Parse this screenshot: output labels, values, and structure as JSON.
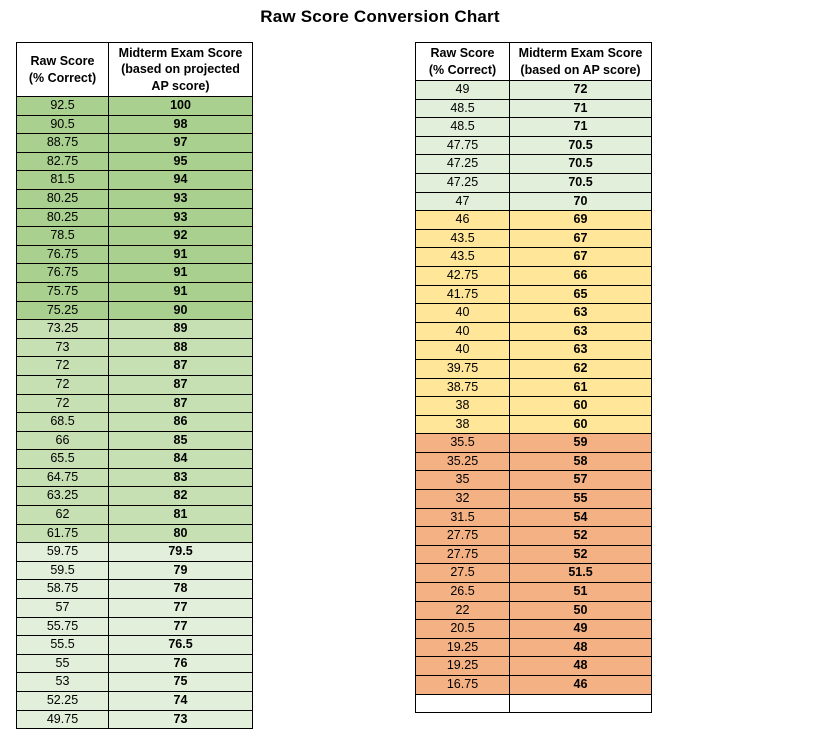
{
  "title": "Raw Score Conversion Chart",
  "colors": {
    "dark_green": "#A9D08E",
    "medium_green": "#C6E0B4",
    "light_green": "#E2EFDA",
    "yellow": "#FFE699",
    "orange": "#F4B183",
    "white": "#FFFFFF",
    "border": "#000000"
  },
  "tables": {
    "left": {
      "header": {
        "raw": "Raw Score\n(% Correct)",
        "score": "Midterm Exam Score\n(based on projected\nAP score)"
      },
      "rows": [
        {
          "raw": "92.5",
          "score": "100",
          "band": "dark_green"
        },
        {
          "raw": "90.5",
          "score": "98",
          "band": "dark_green"
        },
        {
          "raw": "88.75",
          "score": "97",
          "band": "dark_green"
        },
        {
          "raw": "82.75",
          "score": "95",
          "band": "dark_green"
        },
        {
          "raw": "81.5",
          "score": "94",
          "band": "dark_green"
        },
        {
          "raw": "80.25",
          "score": "93",
          "band": "dark_green"
        },
        {
          "raw": "80.25",
          "score": "93",
          "band": "dark_green"
        },
        {
          "raw": "78.5",
          "score": "92",
          "band": "dark_green"
        },
        {
          "raw": "76.75",
          "score": "91",
          "band": "dark_green"
        },
        {
          "raw": "76.75",
          "score": "91",
          "band": "dark_green"
        },
        {
          "raw": "75.75",
          "score": "91",
          "band": "dark_green"
        },
        {
          "raw": "75.25",
          "score": "90",
          "band": "dark_green"
        },
        {
          "raw": "73.25",
          "score": "89",
          "band": "medium_green"
        },
        {
          "raw": "73",
          "score": "88",
          "band": "medium_green"
        },
        {
          "raw": "72",
          "score": "87",
          "band": "medium_green"
        },
        {
          "raw": "72",
          "score": "87",
          "band": "medium_green"
        },
        {
          "raw": "72",
          "score": "87",
          "band": "medium_green"
        },
        {
          "raw": "68.5",
          "score": "86",
          "band": "medium_green"
        },
        {
          "raw": "66",
          "score": "85",
          "band": "medium_green"
        },
        {
          "raw": "65.5",
          "score": "84",
          "band": "medium_green"
        },
        {
          "raw": "64.75",
          "score": "83",
          "band": "medium_green"
        },
        {
          "raw": "63.25",
          "score": "82",
          "band": "medium_green"
        },
        {
          "raw": "62",
          "score": "81",
          "band": "medium_green"
        },
        {
          "raw": "61.75",
          "score": "80",
          "band": "medium_green"
        },
        {
          "raw": "59.75",
          "score": "79.5",
          "band": "light_green"
        },
        {
          "raw": "59.5",
          "score": "79",
          "band": "light_green"
        },
        {
          "raw": "58.75",
          "score": "78",
          "band": "light_green"
        },
        {
          "raw": "57",
          "score": "77",
          "band": "light_green"
        },
        {
          "raw": "55.75",
          "score": "77",
          "band": "light_green"
        },
        {
          "raw": "55.5",
          "score": "76.5",
          "band": "light_green"
        },
        {
          "raw": "55",
          "score": "76",
          "band": "light_green"
        },
        {
          "raw": "53",
          "score": "75",
          "band": "light_green"
        },
        {
          "raw": "52.25",
          "score": "74",
          "band": "light_green"
        },
        {
          "raw": "49.75",
          "score": "73",
          "band": "light_green"
        }
      ]
    },
    "right": {
      "header": {
        "raw": "Raw Score\n(% Correct)",
        "score": "Midterm Exam Score\n(based on AP score)"
      },
      "rows": [
        {
          "raw": "49",
          "score": "72",
          "band": "light_green"
        },
        {
          "raw": "48.5",
          "score": "71",
          "band": "light_green"
        },
        {
          "raw": "48.5",
          "score": "71",
          "band": "light_green"
        },
        {
          "raw": "47.75",
          "score": "70.5",
          "band": "light_green"
        },
        {
          "raw": "47.25",
          "score": "70.5",
          "band": "light_green"
        },
        {
          "raw": "47.25",
          "score": "70.5",
          "band": "light_green"
        },
        {
          "raw": "47",
          "score": "70",
          "band": "light_green"
        },
        {
          "raw": "46",
          "score": "69",
          "band": "yellow"
        },
        {
          "raw": "43.5",
          "score": "67",
          "band": "yellow"
        },
        {
          "raw": "43.5",
          "score": "67",
          "band": "yellow"
        },
        {
          "raw": "42.75",
          "score": "66",
          "band": "yellow"
        },
        {
          "raw": "41.75",
          "score": "65",
          "band": "yellow"
        },
        {
          "raw": "40",
          "score": "63",
          "band": "yellow"
        },
        {
          "raw": "40",
          "score": "63",
          "band": "yellow"
        },
        {
          "raw": "40",
          "score": "63",
          "band": "yellow"
        },
        {
          "raw": "39.75",
          "score": "62",
          "band": "yellow"
        },
        {
          "raw": "38.75",
          "score": "61",
          "band": "yellow"
        },
        {
          "raw": "38",
          "score": "60",
          "band": "yellow"
        },
        {
          "raw": "38",
          "score": "60",
          "band": "yellow"
        },
        {
          "raw": "35.5",
          "score": "59",
          "band": "orange"
        },
        {
          "raw": "35.25",
          "score": "58",
          "band": "orange"
        },
        {
          "raw": "35",
          "score": "57",
          "band": "orange"
        },
        {
          "raw": "32",
          "score": "55",
          "band": "orange"
        },
        {
          "raw": "31.5",
          "score": "54",
          "band": "orange"
        },
        {
          "raw": "27.75",
          "score": "52",
          "band": "orange"
        },
        {
          "raw": "27.75",
          "score": "52",
          "band": "orange"
        },
        {
          "raw": "27.5",
          "score": "51.5",
          "band": "orange"
        },
        {
          "raw": "26.5",
          "score": "51",
          "band": "orange"
        },
        {
          "raw": "22",
          "score": "50",
          "band": "orange"
        },
        {
          "raw": "20.5",
          "score": "49",
          "band": "orange"
        },
        {
          "raw": "19.25",
          "score": "48",
          "band": "orange"
        },
        {
          "raw": "19.25",
          "score": "48",
          "band": "orange"
        },
        {
          "raw": "16.75",
          "score": "46",
          "band": "orange"
        },
        {
          "raw": "",
          "score": "",
          "band": "white"
        }
      ]
    }
  },
  "chart_data": [
    {
      "type": "table",
      "title": "Raw Score Conversion Chart",
      "columns": [
        "Raw Score (% Correct)",
        "Midterm Exam Score (based on projected AP score)"
      ],
      "rows": [
        [
          92.5,
          100
        ],
        [
          90.5,
          98
        ],
        [
          88.75,
          97
        ],
        [
          82.75,
          95
        ],
        [
          81.5,
          94
        ],
        [
          80.25,
          93
        ],
        [
          80.25,
          93
        ],
        [
          78.5,
          92
        ],
        [
          76.75,
          91
        ],
        [
          76.75,
          91
        ],
        [
          75.75,
          91
        ],
        [
          75.25,
          90
        ],
        [
          73.25,
          89
        ],
        [
          73,
          88
        ],
        [
          72,
          87
        ],
        [
          72,
          87
        ],
        [
          72,
          87
        ],
        [
          68.5,
          86
        ],
        [
          66,
          85
        ],
        [
          65.5,
          84
        ],
        [
          64.75,
          83
        ],
        [
          63.25,
          82
        ],
        [
          62,
          81
        ],
        [
          61.75,
          80
        ],
        [
          59.75,
          79.5
        ],
        [
          59.5,
          79
        ],
        [
          58.75,
          78
        ],
        [
          57,
          77
        ],
        [
          55.75,
          77
        ],
        [
          55.5,
          76.5
        ],
        [
          55,
          76
        ],
        [
          53,
          75
        ],
        [
          52.25,
          74
        ],
        [
          49.75,
          73
        ]
      ]
    },
    {
      "type": "table",
      "title": "Raw Score Conversion Chart",
      "columns": [
        "Raw Score (% Correct)",
        "Midterm Exam Score (based on AP score)"
      ],
      "rows": [
        [
          49,
          72
        ],
        [
          48.5,
          71
        ],
        [
          48.5,
          71
        ],
        [
          47.75,
          70.5
        ],
        [
          47.25,
          70.5
        ],
        [
          47.25,
          70.5
        ],
        [
          47,
          70
        ],
        [
          46,
          69
        ],
        [
          43.5,
          67
        ],
        [
          43.5,
          67
        ],
        [
          42.75,
          66
        ],
        [
          41.75,
          65
        ],
        [
          40,
          63
        ],
        [
          40,
          63
        ],
        [
          40,
          63
        ],
        [
          39.75,
          62
        ],
        [
          38.75,
          61
        ],
        [
          38,
          60
        ],
        [
          38,
          60
        ],
        [
          35.5,
          59
        ],
        [
          35.25,
          58
        ],
        [
          35,
          57
        ],
        [
          32,
          55
        ],
        [
          31.5,
          54
        ],
        [
          27.75,
          52
        ],
        [
          27.75,
          52
        ],
        [
          27.5,
          51.5
        ],
        [
          26.5,
          51
        ],
        [
          22,
          50
        ],
        [
          20.5,
          49
        ],
        [
          19.25,
          48
        ],
        [
          19.25,
          48
        ],
        [
          16.75,
          46
        ]
      ]
    }
  ]
}
